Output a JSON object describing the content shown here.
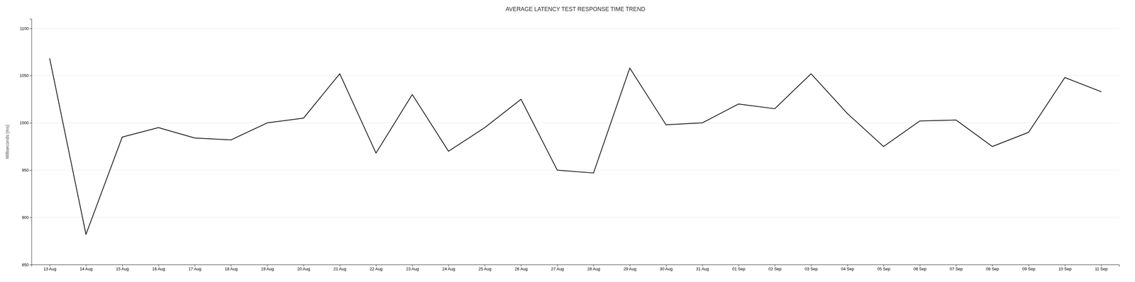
{
  "chart_data": {
    "type": "line",
    "title": "AVERAGE LATENCY TEST RESPONSE TIME TREND",
    "ylabel": "Milliseconds (ms)",
    "categories": [
      "13 Aug",
      "14 Aug",
      "15 Aug",
      "16 Aug",
      "17 Aug",
      "18 Aug",
      "19 Aug",
      "20 Aug",
      "21 Aug",
      "22 Aug",
      "23 Aug",
      "24 Aug",
      "25 Aug",
      "26 Aug",
      "27 Aug",
      "28 Aug",
      "29 Aug",
      "30 Aug",
      "31 Aug",
      "01 Sep",
      "02 Sep",
      "03 Sep",
      "04 Sep",
      "05 Sep",
      "06 Sep",
      "07 Sep",
      "08 Sep",
      "09 Sep",
      "10 Sep",
      "11 Sep"
    ],
    "values": [
      1068,
      882,
      985,
      995,
      984,
      982,
      1000,
      1005,
      1052,
      968,
      1030,
      970,
      995,
      1025,
      950,
      947,
      1058,
      998,
      1000,
      1020,
      1015,
      1052,
      1010,
      975,
      1002,
      1003,
      975,
      990,
      1048,
      1033
    ],
    "color": "#1a1a1a",
    "ylim": [
      850,
      1110
    ],
    "yticks": [
      850,
      900,
      950,
      1000,
      1050,
      1100
    ],
    "grid": true
  }
}
